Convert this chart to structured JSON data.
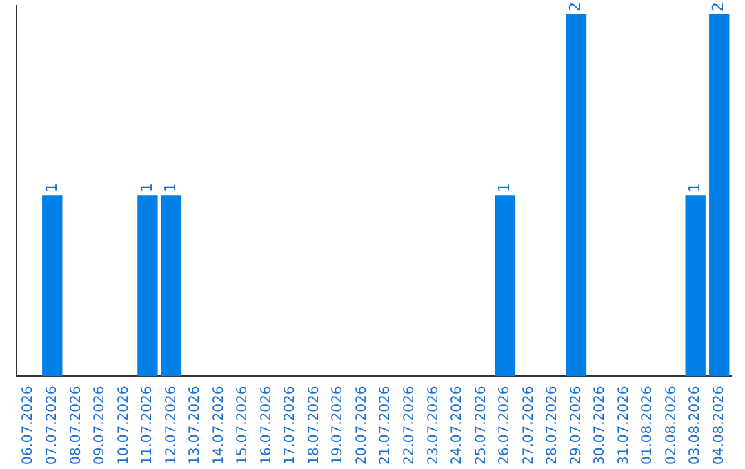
{
  "chart_data": {
    "type": "bar",
    "categories": [
      "06.07.2026",
      "07.07.2026",
      "08.07.2026",
      "09.07.2026",
      "10.07.2026",
      "11.07.2026",
      "12.07.2026",
      "13.07.2026",
      "14.07.2026",
      "15.07.2026",
      "16.07.2026",
      "17.07.2026",
      "18.07.2026",
      "19.07.2026",
      "20.07.2026",
      "21.07.2026",
      "22.07.2026",
      "23.07.2026",
      "24.07.2026",
      "25.07.2026",
      "26.07.2026",
      "27.07.2026",
      "28.07.2026",
      "29.07.2026",
      "30.07.2026",
      "31.07.2026",
      "01.08.2026",
      "02.08.2026",
      "03.08.2026",
      "04.08.2026"
    ],
    "values": [
      0,
      1,
      0,
      0,
      0,
      1,
      1,
      0,
      0,
      0,
      0,
      0,
      0,
      0,
      0,
      0,
      0,
      0,
      0,
      0,
      1,
      0,
      0,
      2,
      0,
      0,
      0,
      0,
      1,
      2
    ],
    "value_labels": [
      null,
      "1",
      null,
      null,
      null,
      "1",
      "1",
      null,
      null,
      null,
      null,
      null,
      null,
      null,
      null,
      null,
      null,
      null,
      null,
      null,
      "1",
      null,
      null,
      "2",
      null,
      null,
      null,
      null,
      "1",
      "2"
    ],
    "color": "#0080e6",
    "ylim": [
      0,
      2.05
    ],
    "tick_labels": "x",
    "grid": false,
    "legend": false
  }
}
